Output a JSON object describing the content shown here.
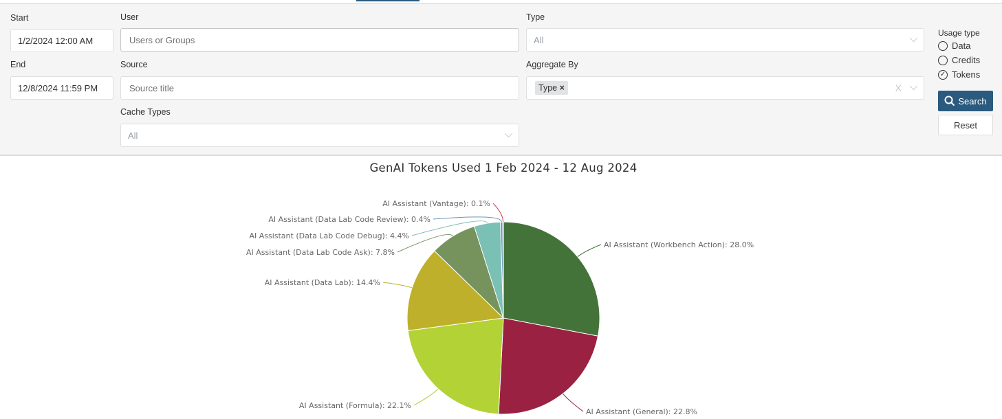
{
  "filters": {
    "start_label": "Start",
    "start_value": "1/2/2024 12:00 AM",
    "end_label": "End",
    "end_value": "12/8/2024 11:59 PM",
    "user_label": "User",
    "user_placeholder": "Users or Groups",
    "source_label": "Source",
    "source_placeholder": "Source title",
    "cache_label": "Cache Types",
    "cache_value": "All",
    "type_label": "Type",
    "type_value": "All",
    "aggregate_label": "Aggregate By",
    "aggregate_chip": "Type",
    "aggregate_chip_remove": "×",
    "aggregate_clear": "X",
    "usage_type_label": "Usage type",
    "usage_options": [
      {
        "label": "Data",
        "checked": false
      },
      {
        "label": "Credits",
        "checked": false
      },
      {
        "label": "Tokens",
        "checked": true
      }
    ],
    "search_label": "Search",
    "reset_label": "Reset"
  },
  "chart_data": {
    "type": "pie",
    "title": "GenAI Tokens Used 1 Feb 2024 - 12 Aug 2024",
    "slices": [
      {
        "label": "AI Assistant (Workbench Action): 28.0%",
        "name": "AI Assistant (Workbench Action)",
        "value": 28.0,
        "color": "#44733a"
      },
      {
        "label": "AI Assistant (General): 22.8%",
        "name": "AI Assistant (General)",
        "value": 22.8,
        "color": "#9b2142"
      },
      {
        "label": "AI Assistant (Formula): 22.1%",
        "name": "AI Assistant (Formula)",
        "value": 22.1,
        "color": "#b2d235"
      },
      {
        "label": "AI Assistant (Data Lab): 14.4%",
        "name": "AI Assistant (Data Lab)",
        "value": 14.4,
        "color": "#bfb02b"
      },
      {
        "label": "AI Assistant (Data Lab Code Ask): 7.8%",
        "name": "AI Assistant (Data Lab Code Ask)",
        "value": 7.8,
        "color": "#76925d"
      },
      {
        "label": "AI Assistant (Data Lab Code Debug): 4.4%",
        "name": "AI Assistant (Data Lab Code Debug)",
        "value": 4.4,
        "color": "#7bc0b5"
      },
      {
        "label": "AI Assistant (Data Lab Code Review): 0.4%",
        "name": "AI Assistant (Data Lab Code Review)",
        "value": 0.4,
        "color": "#6a95b8"
      },
      {
        "label": "AI Assistant (Vantage): 0.1%",
        "name": "AI Assistant (Vantage)",
        "value": 0.1,
        "color": "#d23a4f"
      }
    ]
  }
}
